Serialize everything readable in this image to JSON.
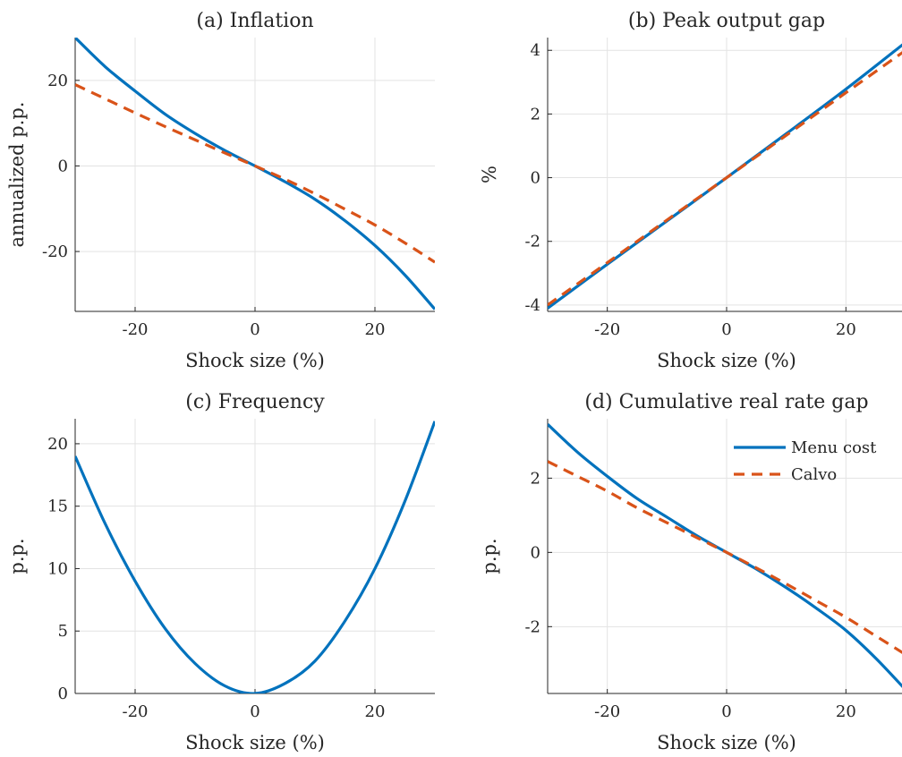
{
  "chart_data": [
    {
      "id": "a",
      "type": "line",
      "title": "(a) Inflation",
      "xlabel": "Shock size (%)",
      "ylabel": "annualized p.p.",
      "xlim": [
        -30,
        30
      ],
      "ylim": [
        -34,
        30
      ],
      "xticks": [
        -20,
        0,
        20
      ],
      "yticks": [
        -20,
        0,
        20
      ],
      "xtick_labels": [
        "-20",
        "0",
        "20"
      ],
      "ytick_labels": [
        "-20",
        "0",
        "20"
      ],
      "grid": true,
      "x": [
        -30,
        -25,
        -20,
        -15,
        -10,
        -5,
        0,
        5,
        10,
        15,
        20,
        25,
        30
      ],
      "series": [
        {
          "name": "Menu cost",
          "color": "#0072BD",
          "dash": "solid",
          "values": [
            30,
            23.2,
            17.5,
            12.1,
            7.6,
            3.6,
            0,
            -3.7,
            -7.8,
            -12.8,
            -18.6,
            -25.5,
            -33.5
          ]
        },
        {
          "name": "Calvo",
          "color": "#D95319",
          "dash": "dashed",
          "values": [
            19,
            15.7,
            12.4,
            9.2,
            6.1,
            3,
            0,
            -3.1,
            -6.5,
            -10.1,
            -13.8,
            -18,
            -22.5
          ]
        }
      ]
    },
    {
      "id": "b",
      "type": "line",
      "title": "(b) Peak output gap",
      "xlabel": "Shock size (%)",
      "ylabel": "%",
      "xlim": [
        -30,
        30
      ],
      "ylim": [
        -4.2,
        4.4
      ],
      "xticks": [
        -20,
        0,
        20
      ],
      "yticks": [
        -4,
        -2,
        0,
        2,
        4
      ],
      "xtick_labels": [
        "-20",
        "0",
        "20"
      ],
      "ytick_labels": [
        "-4",
        "-2",
        "0",
        "2",
        "4"
      ],
      "grid": true,
      "x": [
        -30,
        -20,
        -10,
        0,
        10,
        20,
        30
      ],
      "series": [
        {
          "name": "Menu cost",
          "color": "#0072BD",
          "dash": "solid",
          "values": [
            -4.1,
            -2.72,
            -1.36,
            0,
            1.38,
            2.78,
            4.25
          ]
        },
        {
          "name": "Calvo",
          "color": "#D95319",
          "dash": "dashed",
          "values": [
            -4.0,
            -2.67,
            -1.33,
            0,
            1.33,
            2.67,
            4.0
          ]
        }
      ]
    },
    {
      "id": "c",
      "type": "line",
      "title": "(c) Frequency",
      "xlabel": "Shock size (%)",
      "ylabel": "p.p.",
      "xlim": [
        -30,
        30
      ],
      "ylim": [
        0,
        22
      ],
      "xticks": [
        -20,
        0,
        20
      ],
      "yticks": [
        0,
        5,
        10,
        15,
        20
      ],
      "xtick_labels": [
        "-20",
        "0",
        "20"
      ],
      "ytick_labels": [
        "0",
        "5",
        "10",
        "15",
        "20"
      ],
      "grid": true,
      "x": [
        -30,
        -25,
        -20,
        -15,
        -10,
        -5,
        0,
        5,
        10,
        15,
        20,
        25,
        30
      ],
      "series": [
        {
          "name": "Menu cost",
          "color": "#0072BD",
          "dash": "solid",
          "values": [
            19,
            13.6,
            9,
            5.2,
            2.4,
            0.6,
            0,
            0.8,
            2.6,
            5.8,
            10,
            15.4,
            21.8
          ]
        }
      ]
    },
    {
      "id": "d",
      "type": "line",
      "title": "(d) Cumulative real rate gap",
      "xlabel": "Shock size (%)",
      "ylabel": "p.p.",
      "xlim": [
        -30,
        30
      ],
      "ylim": [
        -3.8,
        3.6
      ],
      "xticks": [
        -20,
        0,
        20
      ],
      "yticks": [
        -2,
        0,
        2
      ],
      "xtick_labels": [
        "-20",
        "0",
        "20"
      ],
      "ytick_labels": [
        "-2",
        "0",
        "2"
      ],
      "grid": true,
      "legend": "top-right",
      "x": [
        -30,
        -25,
        -20,
        -15,
        -10,
        -5,
        0,
        5,
        10,
        15,
        20,
        25,
        30
      ],
      "series": [
        {
          "name": "Menu cost",
          "color": "#0072BD",
          "dash": "solid",
          "values": [
            3.45,
            2.7,
            2.05,
            1.45,
            0.95,
            0.45,
            0,
            -0.45,
            -0.95,
            -1.5,
            -2.1,
            -2.85,
            -3.7
          ]
        },
        {
          "name": "Calvo",
          "color": "#D95319",
          "dash": "dashed",
          "values": [
            2.45,
            2.05,
            1.65,
            1.2,
            0.8,
            0.4,
            0,
            -0.42,
            -0.85,
            -1.3,
            -1.75,
            -2.25,
            -2.75
          ]
        }
      ]
    }
  ]
}
